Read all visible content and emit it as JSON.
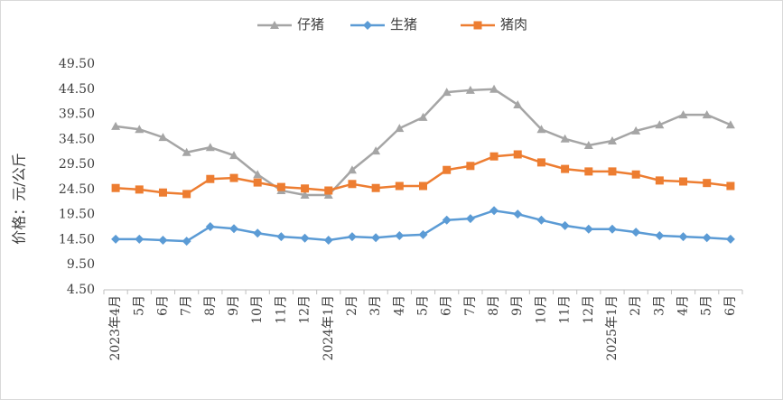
{
  "chart_data": {
    "type": "line",
    "y_label": "价格：元/公斤",
    "categories": [
      "2023年4月",
      "5月",
      "6月",
      "7月",
      "8月",
      "9月",
      "10月",
      "11月",
      "12月",
      "2024年1月",
      "2月",
      "3月",
      "4月",
      "5月",
      "6月",
      "7月",
      "8月",
      "9月",
      "10月",
      "11月",
      "12月",
      "2025年1月",
      "2月",
      "3月",
      "4月",
      "5月",
      "6月"
    ],
    "series": [
      {
        "name": "仔猪",
        "color": "#a5a5a5",
        "marker": "triangle",
        "values": [
          37.1,
          36.5,
          34.9,
          31.9,
          32.9,
          31.3,
          27.5,
          24.3,
          23.4,
          23.4,
          28.4,
          32.2,
          36.7,
          38.9,
          43.9,
          44.3,
          44.5,
          41.4,
          36.5,
          34.6,
          33.3,
          34.2,
          36.2,
          37.4,
          39.4,
          39.4,
          37.4
        ]
      },
      {
        "name": "生猪",
        "color": "#5b9bd5",
        "marker": "diamond",
        "values": [
          14.6,
          14.6,
          14.4,
          14.2,
          17.1,
          16.7,
          15.8,
          15.1,
          14.8,
          14.4,
          15.1,
          14.9,
          15.3,
          15.5,
          18.4,
          18.7,
          20.3,
          19.6,
          18.4,
          17.3,
          16.6,
          16.6,
          16.0,
          15.3,
          15.1,
          14.9,
          14.6
        ]
      },
      {
        "name": "猪肉",
        "color": "#ed7d31",
        "marker": "square",
        "values": [
          24.8,
          24.5,
          23.9,
          23.6,
          26.6,
          26.8,
          25.9,
          25.0,
          24.7,
          24.3,
          25.6,
          24.8,
          25.2,
          25.2,
          28.4,
          29.2,
          31.1,
          31.5,
          29.9,
          28.6,
          28.1,
          28.1,
          27.5,
          26.3,
          26.1,
          25.8,
          25.2
        ]
      }
    ],
    "ylim": [
      4.5,
      49.5
    ],
    "yticks": [
      {
        "value": 4.5,
        "label": "4.50"
      },
      {
        "value": 9.5,
        "label": "9.50"
      },
      {
        "value": 14.5,
        "label": "14.50"
      },
      {
        "value": 19.5,
        "label": "19.50"
      },
      {
        "value": 24.5,
        "label": "24.50"
      },
      {
        "value": 29.5,
        "label": "29.50"
      },
      {
        "value": 34.5,
        "label": "34.50"
      },
      {
        "value": 39.5,
        "label": "39.50"
      },
      {
        "value": 44.5,
        "label": "44.50"
      },
      {
        "value": 49.5,
        "label": "49.50"
      }
    ],
    "grid": false,
    "legend": "top"
  }
}
